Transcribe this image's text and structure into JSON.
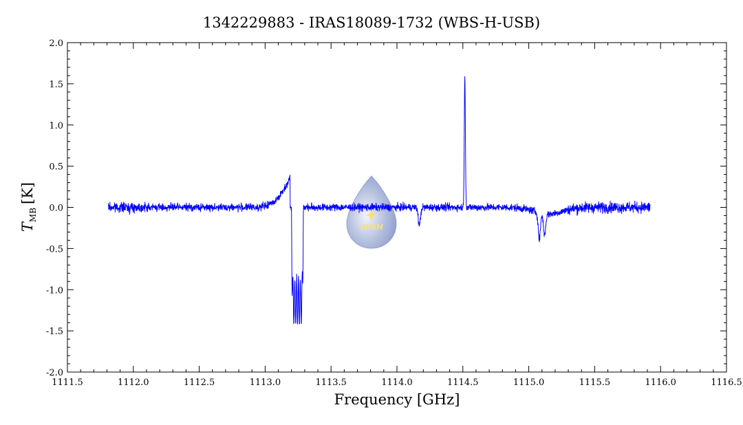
{
  "chart_data": {
    "type": "line",
    "title": "1342229883 - IRAS18089-1732 (WBS-H-USB)",
    "xlabel": "Frequency [GHz]",
    "ylabel_main": "T",
    "ylabel_sub": "MB",
    "ylabel_unit": "[K]",
    "xlim": [
      1111.5,
      1116.5
    ],
    "ylim": [
      -2.0,
      2.0
    ],
    "x_ticks": [
      "1111.5",
      "1112.0",
      "1112.5",
      "1113.0",
      "1113.5",
      "1114.0",
      "1114.5",
      "1115.0",
      "1115.5",
      "1116.0",
      "1116.5"
    ],
    "y_ticks": [
      "-2.0",
      "-1.5",
      "-1.0",
      "-0.5",
      "0.0",
      "0.5",
      "1.0",
      "1.5",
      "2.0"
    ],
    "series_color": "#0000ff",
    "x_range": [
      1111.81,
      1115.92
    ],
    "noise_rms": 0.022,
    "features": [
      {
        "kind": "emission_wing",
        "x_start": 1112.9,
        "x_peak": 1113.19,
        "peak": 0.37
      },
      {
        "kind": "absorption",
        "x_start": 1113.2,
        "x_end": 1113.29,
        "min": -1.43
      },
      {
        "kind": "absorption",
        "x_center": 1114.17,
        "min": -0.22
      },
      {
        "kind": "emission",
        "x_center": 1114.515,
        "peak": 1.57
      },
      {
        "kind": "absorption",
        "x_center": 1115.08,
        "min": -0.32
      },
      {
        "kind": "absorption",
        "x_center": 1115.12,
        "min": -0.26
      }
    ]
  },
  "logo": {
    "text": "WISH"
  }
}
